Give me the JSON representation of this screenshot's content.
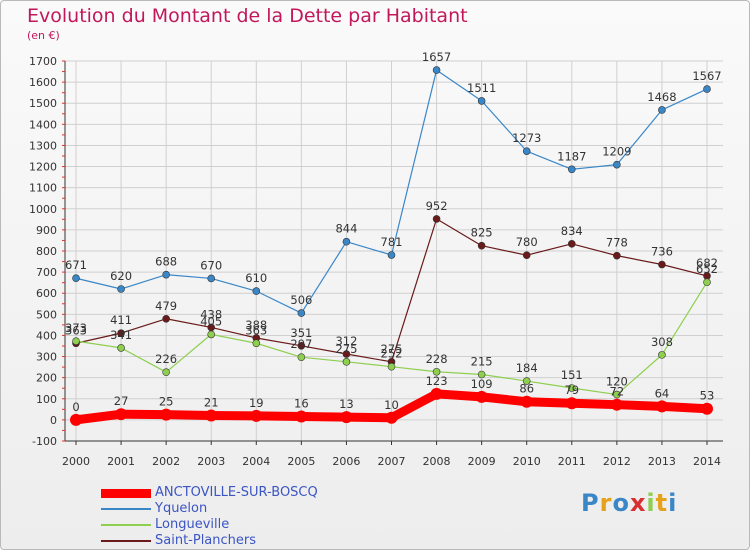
{
  "chart_data": {
    "type": "line",
    "title": "Evolution du Montant de la Dette par Habitant",
    "subtitle": "(en €)",
    "x": [
      "2000",
      "2001",
      "2002",
      "2003",
      "2004",
      "2005",
      "2006",
      "2007",
      "2008",
      "2009",
      "2010",
      "2011",
      "2012",
      "2013",
      "2014"
    ],
    "yticks": [
      -100,
      0,
      100,
      200,
      300,
      400,
      500,
      600,
      700,
      800,
      900,
      1000,
      1100,
      1200,
      1300,
      1400,
      1500,
      1600,
      1700
    ],
    "ylim": [
      -100,
      1700
    ],
    "grid": true,
    "legend_position": "bottom-left",
    "series": [
      {
        "name": "ANCTOVILLE-SUR-BOSCQ",
        "color": "#ff0000",
        "values": [
          0,
          27,
          25,
          21,
          19,
          16,
          13,
          10,
          123,
          109,
          86,
          79,
          72,
          64,
          53
        ],
        "labels": [
          "0",
          "27",
          "25",
          "21",
          "19",
          "16",
          "13",
          "10",
          "123",
          "109",
          "86",
          "79",
          "72",
          "64",
          "53"
        ]
      },
      {
        "name": "Yquelon",
        "color": "#3a87c8",
        "values": [
          671,
          620,
          688,
          670,
          610,
          506,
          844,
          781,
          1657,
          1511,
          1273,
          1187,
          1209,
          1468,
          1567
        ],
        "labels": [
          "671",
          "620",
          "688",
          "670",
          "610",
          "506",
          "844",
          "781",
          "1657",
          "1511",
          "1273",
          "1187",
          "1209",
          "1468",
          "1567"
        ]
      },
      {
        "name": "Longueville",
        "color": "#8ecf4f",
        "values": [
          373,
          341,
          226,
          405,
          363,
          297,
          275,
          252,
          228,
          215,
          184,
          151,
          120,
          308,
          652
        ],
        "labels": [
          "373",
          "341",
          "226",
          "405",
          "363",
          "297",
          "275",
          "252",
          "228",
          "215",
          "184",
          "151",
          "120",
          "308",
          "652"
        ]
      },
      {
        "name": "Saint-Planchers",
        "color": "#6a1a1a",
        "values": [
          363,
          411,
          479,
          438,
          388,
          351,
          312,
          275,
          952,
          825,
          780,
          834,
          778,
          736,
          682
        ],
        "labels": [
          "363",
          "411",
          "479",
          "438",
          "388",
          "351",
          "312",
          "275",
          "952",
          "825",
          "780",
          "834",
          "778",
          "736",
          "682"
        ]
      }
    ]
  },
  "logo": {
    "text": "Proxiti"
  }
}
